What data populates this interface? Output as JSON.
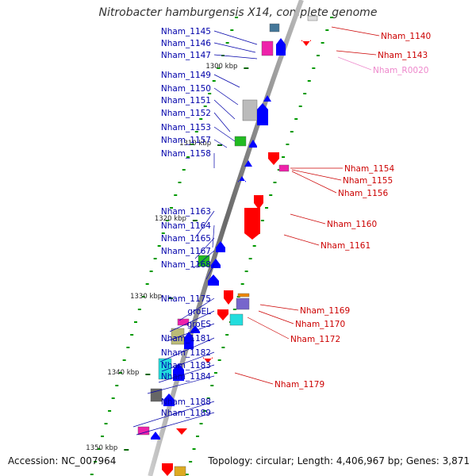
{
  "title": "Nitrobacter hamburgensis X14, complete genome",
  "footer": {
    "accession": "Accession: NC_007964",
    "summary": "Topology: circular; Length: 4,406,967 bp; Genes: 3,871"
  },
  "colors": {
    "left_label": "#0000aa",
    "right_label": "#cc0000",
    "rna_label": "#ee88cc",
    "forward_gene": "#0000ff",
    "reverse_gene": "#ff0000",
    "backbone": "#777777",
    "tick": "#009900"
  },
  "scale_ticks": [
    "1300 kbp",
    "1310 kbp",
    "1320 kbp",
    "1330 kbp",
    "1340 kbp",
    "1350 kbp"
  ],
  "left_labels": [
    "Nham_1145",
    "Nham_1146",
    "Nham_1147",
    "Nham_1149",
    "Nham_1150",
    "Nham_1151",
    "Nham_1152",
    "Nham_1153",
    "Nham_1157",
    "Nham_1158",
    "Nham_1163",
    "Nham_1164",
    "Nham_1165",
    "Nham_1167",
    "Nham_1168",
    "Nham_1175",
    "groEL",
    "groES",
    "Nham_1181",
    "Nham_1182",
    "Nham_1183",
    "Nham_1184",
    "Nham_1188",
    "Nham_1189"
  ],
  "right_labels": [
    "Nham_1140",
    "Nham_1143",
    "Nham_R0020",
    "Nham_1154",
    "Nham_1155",
    "Nham_1156",
    "Nham_1160",
    "Nham_1161",
    "Nham_1169",
    "Nham_1170",
    "Nham_1172",
    "Nham_1179"
  ]
}
